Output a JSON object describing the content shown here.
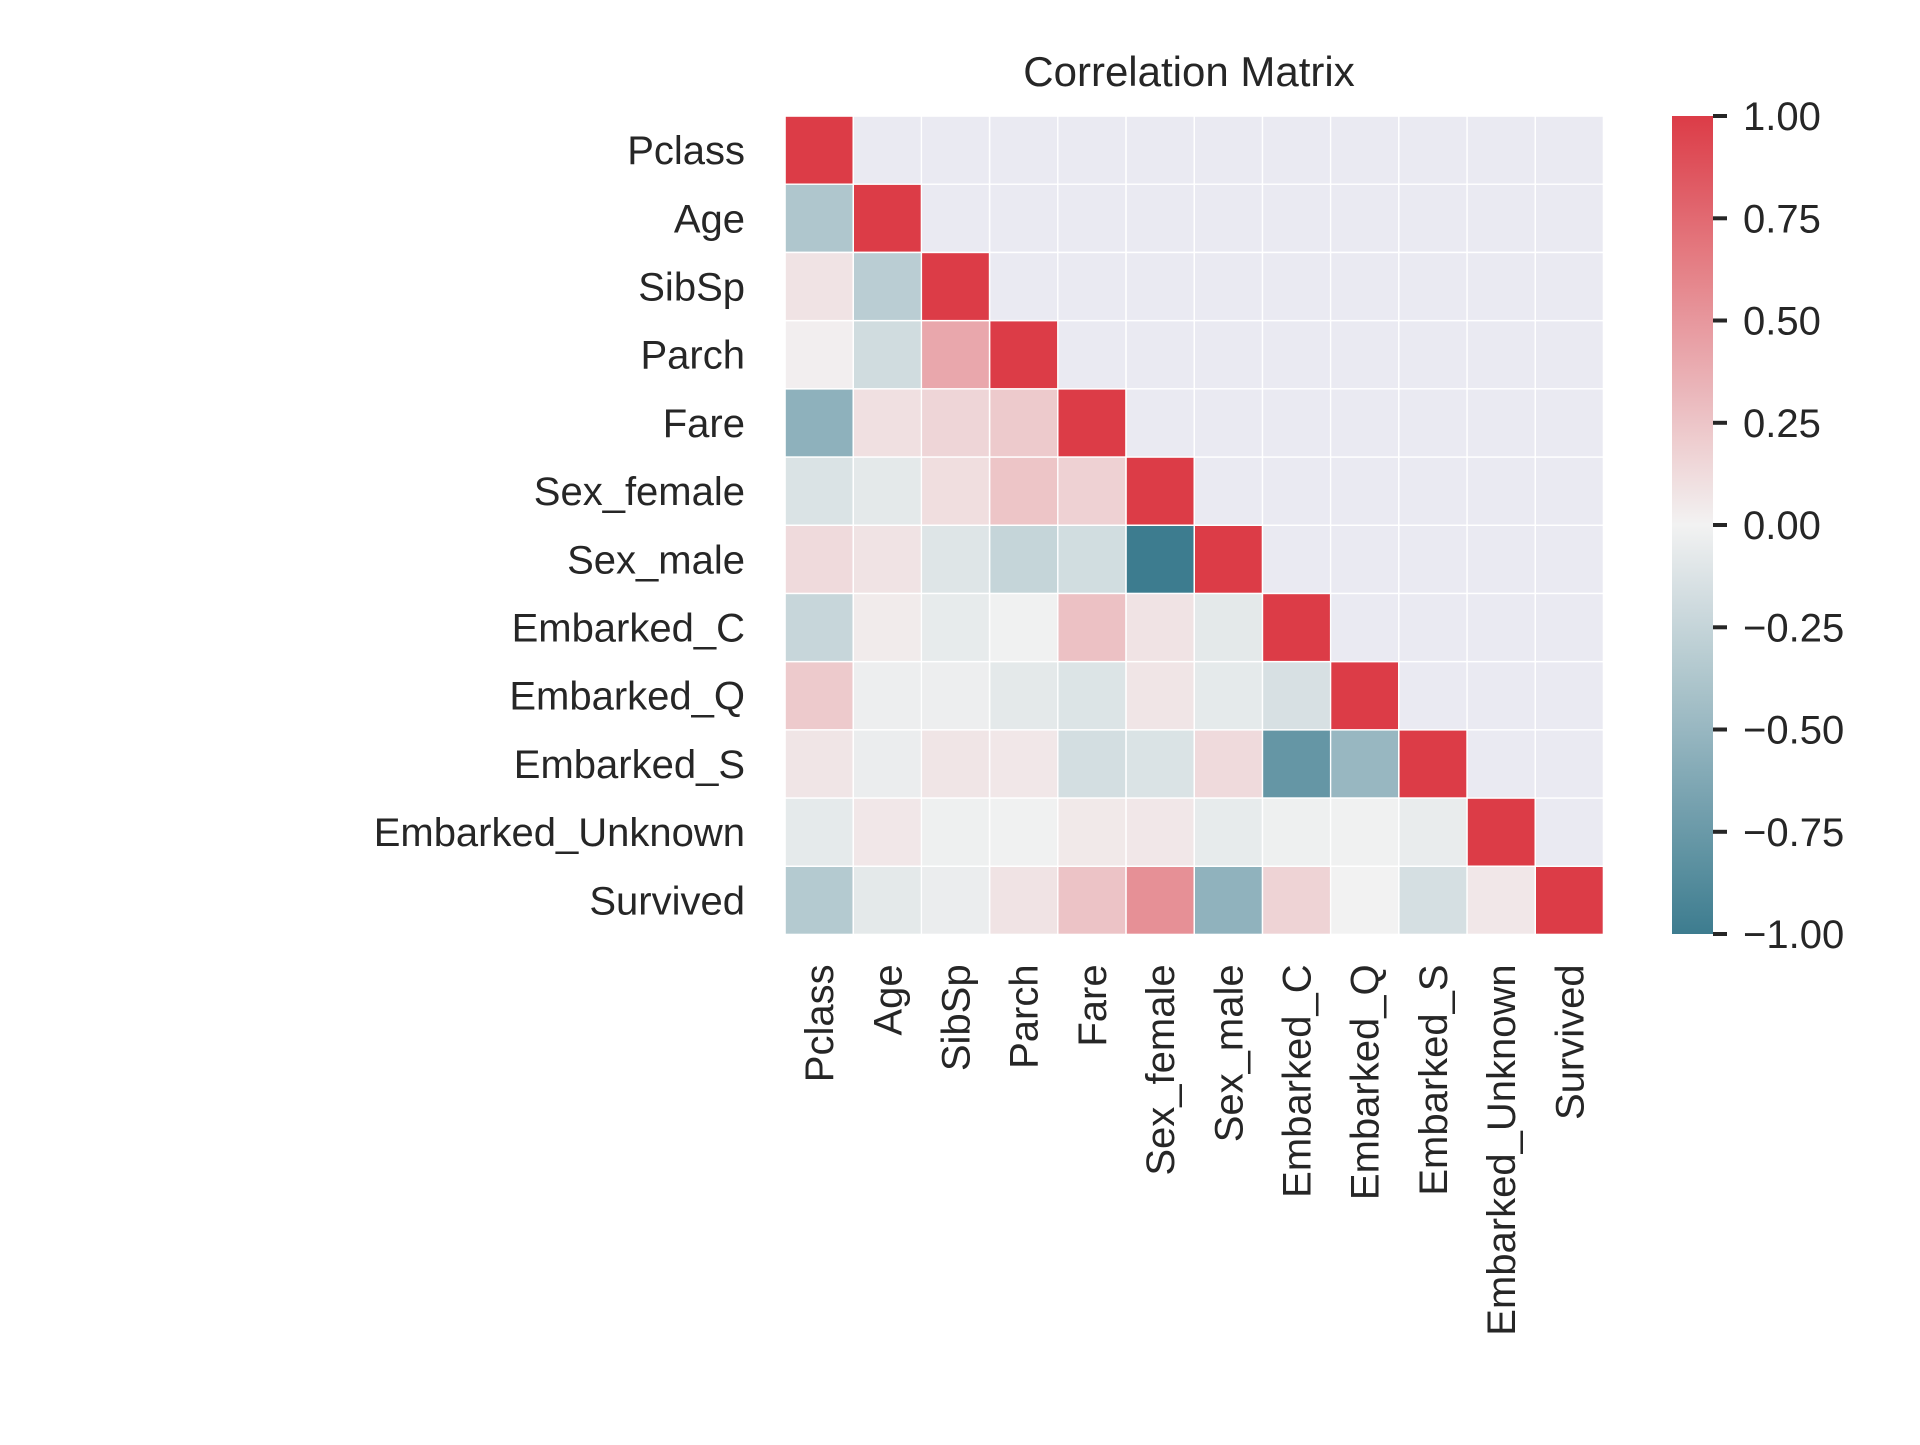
{
  "chart_data": {
    "type": "heatmap",
    "title": "Correlation Matrix",
    "variables": [
      "Pclass",
      "Age",
      "SibSp",
      "Parch",
      "Fare",
      "Sex_female",
      "Sex_male",
      "Embarked_C",
      "Embarked_Q",
      "Embarked_S",
      "Embarked_Unknown",
      "Survived"
    ],
    "mask": "upper triangle (above diagonal)",
    "values": [
      [
        1.0,
        null,
        null,
        null,
        null,
        null,
        null,
        null,
        null,
        null,
        null,
        null
      ],
      [
        -0.37,
        1.0,
        null,
        null,
        null,
        null,
        null,
        null,
        null,
        null,
        null,
        null
      ],
      [
        0.08,
        -0.31,
        1.0,
        null,
        null,
        null,
        null,
        null,
        null,
        null,
        null,
        null
      ],
      [
        0.02,
        -0.19,
        0.41,
        1.0,
        null,
        null,
        null,
        null,
        null,
        null,
        null,
        null
      ],
      [
        -0.55,
        0.1,
        0.16,
        0.22,
        1.0,
        null,
        null,
        null,
        null,
        null,
        null,
        null
      ],
      [
        -0.13,
        -0.08,
        0.11,
        0.25,
        0.18,
        1.0,
        null,
        null,
        null,
        null,
        null,
        null
      ],
      [
        0.13,
        0.08,
        -0.11,
        -0.25,
        -0.18,
        -1.0,
        1.0,
        null,
        null,
        null,
        null,
        null
      ],
      [
        -0.24,
        0.04,
        -0.06,
        -0.01,
        0.27,
        0.08,
        -0.08,
        1.0,
        null,
        null,
        null,
        null
      ],
      [
        0.22,
        -0.03,
        -0.03,
        -0.08,
        -0.12,
        0.07,
        -0.07,
        -0.15,
        1.0,
        null,
        null,
        null
      ],
      [
        0.07,
        -0.04,
        0.07,
        0.06,
        -0.17,
        -0.13,
        0.13,
        -0.78,
        -0.5,
        1.0,
        null,
        null
      ],
      [
        -0.07,
        0.06,
        -0.02,
        -0.01,
        0.05,
        0.06,
        -0.06,
        -0.02,
        -0.01,
        -0.05,
        1.0,
        null
      ],
      [
        -0.34,
        -0.08,
        -0.04,
        0.08,
        0.26,
        0.54,
        -0.54,
        0.17,
        0.0,
        -0.16,
        0.06,
        1.0
      ]
    ],
    "vmin": -1.0,
    "vmax": 1.0,
    "colorbar_ticks": [
      "1.00",
      "0.75",
      "0.50",
      "0.25",
      "0.00",
      "−0.25",
      "−0.50",
      "−0.75",
      "−1.00"
    ],
    "colorbar_tick_values": [
      1.0,
      0.75,
      0.5,
      0.25,
      0.0,
      -0.25,
      -0.5,
      -0.75,
      -1.0
    ],
    "colormap": {
      "negative": "#3d7c8f",
      "center": "#f2f2f2",
      "positive": "#dc3c47",
      "masked": "#eaeaf2"
    },
    "grid": false
  }
}
